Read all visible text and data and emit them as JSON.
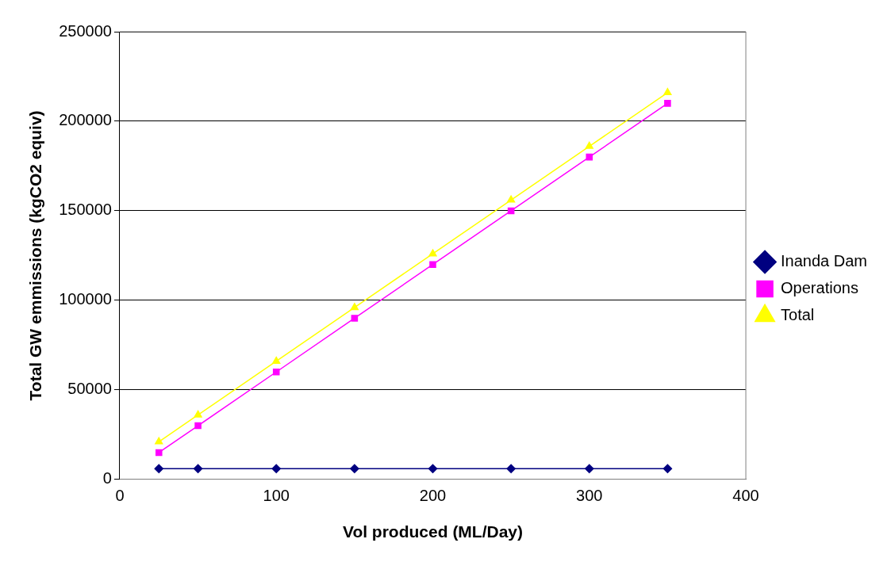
{
  "chart_data": {
    "type": "line",
    "xlabel": "Vol produced (ML/Day)",
    "ylabel": "Total GW emmissions (kgCO2 equiv)",
    "x": [
      25,
      50,
      100,
      150,
      200,
      250,
      300,
      350
    ],
    "series": [
      {
        "name": "Inanda Dam",
        "color": "#000080",
        "marker": "diamond",
        "values": [
          6000,
          6000,
          6000,
          6000,
          6000,
          6000,
          6000,
          6000
        ]
      },
      {
        "name": "Operations",
        "color": "#ff00ff",
        "marker": "square",
        "values": [
          15000,
          30000,
          60000,
          90000,
          120000,
          150000,
          180000,
          210000
        ]
      },
      {
        "name": "Total",
        "color": "#ffff00",
        "marker": "triangle",
        "values": [
          21000,
          36000,
          66000,
          96000,
          126000,
          156000,
          186000,
          216000
        ]
      }
    ],
    "xlim": [
      0,
      400
    ],
    "xticks": [
      0,
      100,
      200,
      300,
      400
    ],
    "ylim": [
      0,
      250000
    ],
    "yticks": [
      0,
      50000,
      100000,
      150000,
      200000,
      250000
    ],
    "grid": "y",
    "legend": "right"
  }
}
